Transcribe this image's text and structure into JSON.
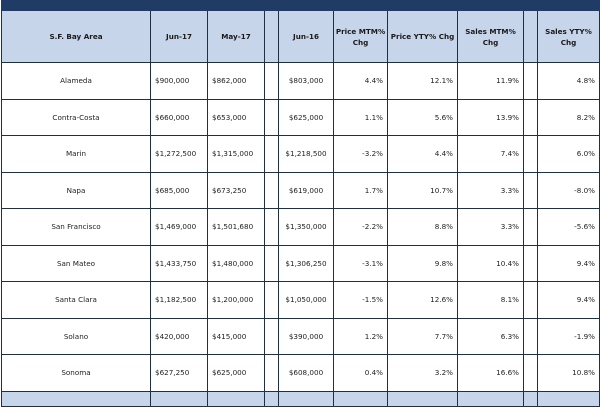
{
  "table": {
    "headers": {
      "area": "S.F. Bay Area",
      "jun17": "Jun-17",
      "may17": "May-17",
      "jun16": "Jun-16",
      "price_mtm": "Price MTM% Chg",
      "price_yty": "Price YTY% Chg",
      "sales_mtm": "Sales MTM% Chg",
      "sales_yty": "Sales YTY% Chg"
    },
    "rows": [
      {
        "area": "Alameda",
        "jun17": "$900,000",
        "may17": "$862,000",
        "jun16": "$803,000",
        "price_mtm": "4.4%",
        "price_yty": "12.1%",
        "sales_mtm": "11.9%",
        "sales_yty": "4.8%"
      },
      {
        "area": "Contra-Costa",
        "jun17": "$660,000",
        "may17": "$653,000",
        "jun16": "$625,000",
        "price_mtm": "1.1%",
        "price_yty": "5.6%",
        "sales_mtm": "13.9%",
        "sales_yty": "8.2%"
      },
      {
        "area": "Marin",
        "jun17": "$1,272,500",
        "may17": "$1,315,000",
        "jun16": "$1,218,500",
        "price_mtm": "-3.2%",
        "price_yty": "4.4%",
        "sales_mtm": "7.4%",
        "sales_yty": "6.0%"
      },
      {
        "area": "Napa",
        "jun17": "$685,000",
        "may17": "$673,250",
        "jun16": "$619,000",
        "price_mtm": "1.7%",
        "price_yty": "10.7%",
        "sales_mtm": "3.3%",
        "sales_yty": "-8.0%"
      },
      {
        "area": "San Francisco",
        "jun17": "$1,469,000",
        "may17": "$1,501,680",
        "jun16": "$1,350,000",
        "price_mtm": "-2.2%",
        "price_yty": "8.8%",
        "sales_mtm": "3.3%",
        "sales_yty": "-5.6%"
      },
      {
        "area": "San Mateo",
        "jun17": "$1,433,750",
        "may17": "$1,480,000",
        "jun16": "$1,306,250",
        "price_mtm": "-3.1%",
        "price_yty": "9.8%",
        "sales_mtm": "10.4%",
        "sales_yty": "9.4%"
      },
      {
        "area": "Santa Clara",
        "jun17": "$1,182,500",
        "may17": "$1,200,000",
        "jun16": "$1,050,000",
        "price_mtm": "-1.5%",
        "price_yty": "12.6%",
        "sales_mtm": "8.1%",
        "sales_yty": "9.4%"
      },
      {
        "area": "Solano",
        "jun17": "$420,000",
        "may17": "$415,000",
        "jun16": "$390,000",
        "price_mtm": "1.2%",
        "price_yty": "7.7%",
        "sales_mtm": "6.3%",
        "sales_yty": "-1.9%"
      },
      {
        "area": "Sonoma",
        "jun17": "$627,250",
        "may17": "$625,000",
        "jun16": "$608,000",
        "price_mtm": "0.4%",
        "price_yty": "3.2%",
        "sales_mtm": "16.6%",
        "sales_yty": "10.8%"
      }
    ]
  },
  "colors": {
    "header_fill": "#c7d5ea",
    "top_band": "#1f3b66",
    "border": "#1f2f45"
  }
}
